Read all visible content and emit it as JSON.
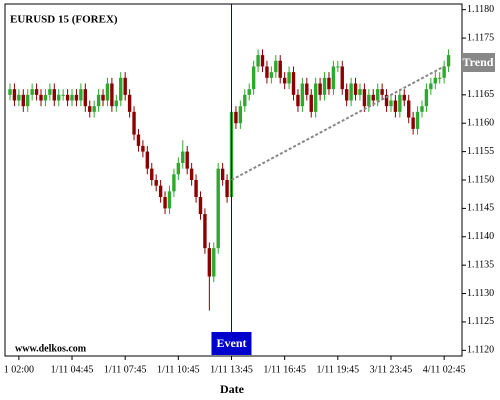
{
  "chart_data": {
    "type": "candlestick",
    "title": "EURUSD 15 (FOREX)",
    "watermark": "www.delkos.com",
    "x_label": "Date",
    "categories": [
      null,
      null,
      "1 02:00",
      null,
      null,
      null,
      null,
      null,
      null,
      null,
      null,
      null,
      null,
      null,
      "1/11 04:45",
      null,
      null,
      null,
      null,
      null,
      null,
      null,
      null,
      null,
      null,
      null,
      "1/11 07:45",
      null,
      null,
      null,
      null,
      null,
      null,
      null,
      null,
      null,
      null,
      null,
      "1/11 10:45",
      null,
      null,
      null,
      null,
      null,
      null,
      null,
      null,
      null,
      null,
      null,
      "1/11 13:45",
      null,
      null,
      null,
      null,
      null,
      null,
      null,
      null,
      null,
      null,
      null,
      "1/11 16:45",
      null,
      null,
      null,
      null,
      null,
      null,
      null,
      null,
      null,
      null,
      null,
      "1/11 19:45",
      null,
      null,
      null,
      null,
      null,
      null,
      null,
      null,
      null,
      null,
      null,
      "3/11 23:45",
      null,
      null,
      null,
      null,
      null,
      null,
      null,
      null,
      null,
      null,
      null,
      "4/11 02:45",
      null
    ],
    "open": [
      1.1165,
      1.1166,
      1.1164,
      1.1165,
      1.1163,
      1.1165,
      1.1166,
      1.1165,
      1.1164,
      1.1165,
      1.1166,
      1.1164,
      1.1165,
      1.1165,
      1.1164,
      1.1165,
      1.1164,
      1.1166,
      1.1163,
      1.1162,
      1.1163,
      1.1165,
      1.1164,
      1.1167,
      1.1163,
      1.1164,
      1.1168,
      1.1165,
      1.1162,
      1.1158,
      1.1156,
      1.1155,
      1.1152,
      1.115,
      1.1149,
      1.1147,
      1.1145,
      1.1148,
      1.1151,
      1.1153,
      1.1155,
      1.1152,
      1.115,
      1.1147,
      1.1144,
      1.1138,
      1.1133,
      1.1138,
      1.1152,
      1.115,
      1.1147,
      1.1162,
      1.116,
      1.1163,
      1.1165,
      1.1166,
      1.117,
      1.1172,
      1.117,
      1.1168,
      1.1169,
      1.1171,
      1.1168,
      1.1167,
      1.1169,
      1.1165,
      1.1163,
      1.1167,
      1.1165,
      1.1162,
      1.1167,
      1.1165,
      1.1168,
      1.1166,
      1.117,
      1.117,
      1.1166,
      1.1164,
      1.1167,
      1.1165,
      1.1166,
      1.1163,
      1.1165,
      1.1164,
      1.1166,
      1.1165,
      1.1163,
      1.1164,
      1.1162,
      1.1165,
      1.1164,
      1.1161,
      1.1159,
      1.1162,
      1.1163,
      1.1166,
      1.1167,
      1.1168,
      1.1168,
      1.117
    ],
    "high": [
      1.1167,
      1.1167,
      1.1166,
      1.1166,
      1.1166,
      1.1167,
      1.1167,
      1.1166,
      1.1166,
      1.1167,
      1.1167,
      1.1166,
      1.1166,
      1.1166,
      1.1166,
      1.1166,
      1.1167,
      1.1167,
      1.1164,
      1.1164,
      1.1166,
      1.1166,
      1.1168,
      1.1168,
      1.1165,
      1.1169,
      1.1169,
      1.1166,
      1.1163,
      1.1159,
      1.1157,
      1.1156,
      1.1153,
      1.1151,
      1.115,
      1.1148,
      1.1149,
      1.1152,
      1.1154,
      1.1157,
      1.1156,
      1.1153,
      1.1151,
      1.1148,
      1.1145,
      1.1139,
      1.1139,
      1.1153,
      1.1153,
      1.1151,
      1.1163,
      1.1163,
      1.1164,
      1.1166,
      1.1167,
      1.1171,
      1.1173,
      1.1173,
      1.1171,
      1.117,
      1.1172,
      1.1172,
      1.1169,
      1.117,
      1.117,
      1.1166,
      1.1168,
      1.1168,
      1.1166,
      1.1168,
      1.1168,
      1.1169,
      1.1169,
      1.1171,
      1.1171,
      1.1171,
      1.1167,
      1.1168,
      1.1168,
      1.1167,
      1.1167,
      1.1166,
      1.1166,
      1.1167,
      1.1167,
      1.1166,
      1.1165,
      1.1165,
      1.1166,
      1.1166,
      1.1165,
      1.1162,
      1.1163,
      1.1164,
      1.1167,
      1.1168,
      1.1169,
      1.1169,
      1.1171,
      1.1173
    ],
    "low": [
      1.1164,
      1.1163,
      1.1163,
      1.1162,
      1.1162,
      1.1164,
      1.1164,
      1.1163,
      1.1163,
      1.1164,
      1.1163,
      1.1163,
      1.1164,
      1.1163,
      1.1163,
      1.1163,
      1.1163,
      1.1162,
      1.1161,
      1.1161,
      1.1162,
      1.1163,
      1.1163,
      1.1162,
      1.1162,
      1.1163,
      1.1164,
      1.1161,
      1.1157,
      1.1155,
      1.1154,
      1.1151,
      1.1149,
      1.1148,
      1.1146,
      1.1144,
      1.1144,
      1.1147,
      1.115,
      1.1152,
      1.1151,
      1.1149,
      1.1146,
      1.1143,
      1.1137,
      1.1127,
      1.1132,
      1.1137,
      1.1149,
      1.1146,
      1.1146,
      1.1159,
      1.1159,
      1.1162,
      1.1164,
      1.1165,
      1.1169,
      1.1169,
      1.1167,
      1.1167,
      1.1168,
      1.1167,
      1.1166,
      1.1166,
      1.1164,
      1.1162,
      1.1162,
      1.1164,
      1.1161,
      1.1161,
      1.1164,
      1.1164,
      1.1165,
      1.1165,
      1.1169,
      1.1165,
      1.1163,
      1.1163,
      1.1164,
      1.1164,
      1.1162,
      1.1162,
      1.1163,
      1.1163,
      1.1164,
      1.1162,
      1.1162,
      1.1161,
      1.1161,
      1.1163,
      1.116,
      1.1158,
      1.1158,
      1.1161,
      1.1162,
      1.1165,
      1.1166,
      1.1167,
      1.1167,
      1.1169
    ],
    "close": [
      1.1166,
      1.1164,
      1.1165,
      1.1163,
      1.1165,
      1.1166,
      1.1165,
      1.1164,
      1.1165,
      1.1166,
      1.1164,
      1.1165,
      1.1165,
      1.1164,
      1.1165,
      1.1164,
      1.1166,
      1.1163,
      1.1162,
      1.1163,
      1.1165,
      1.1164,
      1.1167,
      1.1163,
      1.1164,
      1.1168,
      1.1165,
      1.1162,
      1.1158,
      1.1156,
      1.1155,
      1.1152,
      1.115,
      1.1149,
      1.1147,
      1.1145,
      1.1148,
      1.1151,
      1.1153,
      1.1155,
      1.1152,
      1.115,
      1.1147,
      1.1144,
      1.1138,
      1.1133,
      1.1138,
      1.1152,
      1.115,
      1.1147,
      1.1162,
      1.116,
      1.1163,
      1.1165,
      1.1166,
      1.117,
      1.1172,
      1.117,
      1.1168,
      1.1169,
      1.1171,
      1.1168,
      1.1167,
      1.1169,
      1.1165,
      1.1163,
      1.1167,
      1.1165,
      1.1162,
      1.1167,
      1.1165,
      1.1168,
      1.1166,
      1.117,
      1.117,
      1.1166,
      1.1164,
      1.1167,
      1.1165,
      1.1166,
      1.1163,
      1.1165,
      1.1164,
      1.1166,
      1.1165,
      1.1163,
      1.1164,
      1.1162,
      1.1165,
      1.1164,
      1.1161,
      1.1159,
      1.1162,
      1.1163,
      1.1166,
      1.1167,
      1.1168,
      1.1168,
      1.117,
      1.1172
    ],
    "up_color": "#2fa82f",
    "down_color": "#8b0000",
    "ylim": [
      1.1119,
      1.1181
    ],
    "yticks": [
      {
        "value": 1.112,
        "label": "1.1120"
      },
      {
        "value": 1.1125,
        "label": "1.1125"
      },
      {
        "value": 1.113,
        "label": "1.1130"
      },
      {
        "value": 1.1135,
        "label": "1.1135"
      },
      {
        "value": 1.114,
        "label": "1.1140"
      },
      {
        "value": 1.1145,
        "label": "1.1145"
      },
      {
        "value": 1.115,
        "label": "1.1150"
      },
      {
        "value": 1.1155,
        "label": "1.1155"
      },
      {
        "value": 1.116,
        "label": "1.1160"
      },
      {
        "value": 1.1165,
        "label": "1.1165"
      },
      {
        "value": 1.117,
        "label": "1.1170"
      },
      {
        "value": 1.1175,
        "label": "1.1175"
      },
      {
        "value": 1.118,
        "label": "1.1180"
      }
    ],
    "grid": false,
    "event": {
      "label": "Event",
      "x": 50,
      "color": "#0000cc"
    },
    "trend": {
      "label": "Trend",
      "x": [
        50,
        98
      ],
      "y": [
        1.115,
        1.117
      ],
      "color": "#888888"
    }
  }
}
